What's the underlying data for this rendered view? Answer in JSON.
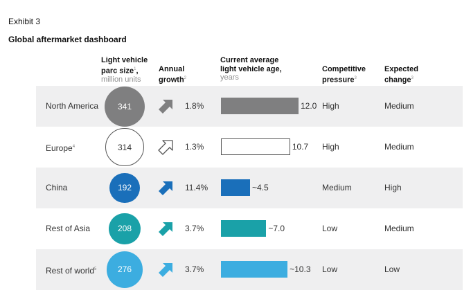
{
  "exhibit": "Exhibit 3",
  "title": "Global aftermarket dashboard",
  "headers": {
    "parc": {
      "line1": "Light vehicle",
      "line2": "parc size",
      "sup": "1",
      "unit": "million units"
    },
    "growth": {
      "line1": "Annual",
      "line2": "growth",
      "sup": "2"
    },
    "age": {
      "line1": "Current average",
      "line2": "light vehicle age,",
      "unit": "years"
    },
    "pressure": {
      "line1": "Competitive",
      "line2": "pressure",
      "sup": "3"
    },
    "change": {
      "line1": "Expected",
      "line2": "change",
      "sup": "3"
    }
  },
  "chart_data": {
    "type": "table",
    "title": "Global aftermarket dashboard",
    "columns": [
      "Light vehicle parc size, million units",
      "Annual growth",
      "Current average light vehicle age, years",
      "Competitive pressure",
      "Expected change"
    ],
    "rows": [
      {
        "region": "North America",
        "sup": "",
        "parc": "341",
        "parc_value": 341,
        "growth": "1.8%",
        "age_label": "12.0",
        "age_value": 12.0,
        "pressure": "High",
        "change": "Medium",
        "color": "#7f7f80",
        "outline": false
      },
      {
        "region": "Europe",
        "sup": "4",
        "parc": "314",
        "parc_value": 314,
        "growth": "1.3%",
        "age_label": "10.7",
        "age_value": 10.7,
        "pressure": "High",
        "change": "Medium",
        "color": "#ffffff",
        "outline": true
      },
      {
        "region": "China",
        "sup": "",
        "parc": "192",
        "parc_value": 192,
        "growth": "11.4%",
        "age_label": "~4.5",
        "age_value": 4.5,
        "pressure": "Medium",
        "change": "High",
        "color": "#1a6fba",
        "outline": false
      },
      {
        "region": "Rest of Asia",
        "sup": "",
        "parc": "208",
        "parc_value": 208,
        "growth": "3.7%",
        "age_label": "~7.0",
        "age_value": 7.0,
        "pressure": "Low",
        "change": "Medium",
        "color": "#1aa1a8",
        "outline": false
      },
      {
        "region": "Rest of world",
        "sup": "5",
        "parc": "276",
        "parc_value": 276,
        "growth": "3.7%",
        "age_label": "~10.3",
        "age_value": 10.3,
        "pressure": "Low",
        "change": "Low",
        "color": "#3cade0",
        "outline": false
      }
    ]
  }
}
